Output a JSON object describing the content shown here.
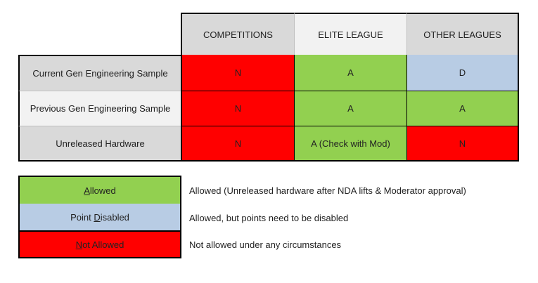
{
  "colors": {
    "allowed": "#92d050",
    "point_disabled": "#b8cce4",
    "not_allowed": "#ff0000",
    "header_gray": "#d9d9d9",
    "header_light": "#f2f2f2"
  },
  "table": {
    "headers": [
      "COMPETITIONS",
      "ELITE LEAGUE",
      "OTHER LEAGUES"
    ],
    "rows": [
      {
        "label": "Current Gen Engineering Sample",
        "cells": [
          "N",
          "A",
          "D"
        ],
        "status": [
          "not_allowed",
          "allowed",
          "point_disabled"
        ]
      },
      {
        "label": "Previous Gen Engineering Sample",
        "cells": [
          "N",
          "A",
          "A"
        ],
        "status": [
          "not_allowed",
          "allowed",
          "allowed"
        ]
      },
      {
        "label": "Unreleased Hardware",
        "cells": [
          "N",
          "A (Check with Mod)",
          "N"
        ],
        "status": [
          "not_allowed",
          "allowed",
          "not_allowed"
        ]
      }
    ]
  },
  "legend": [
    {
      "key_first": "A",
      "key_rest": "llowed",
      "description": "Allowed (Unreleased hardware after NDA lifts & Moderator approval)",
      "status": "allowed"
    },
    {
      "key_first_pre": "Point ",
      "key_first": "D",
      "key_rest": "isabled",
      "description": "Allowed, but points need to be disabled",
      "status": "point_disabled"
    },
    {
      "key_first": "N",
      "key_rest": "ot Allowed",
      "description": "Not allowed under any circumstances",
      "status": "not_allowed"
    }
  ]
}
